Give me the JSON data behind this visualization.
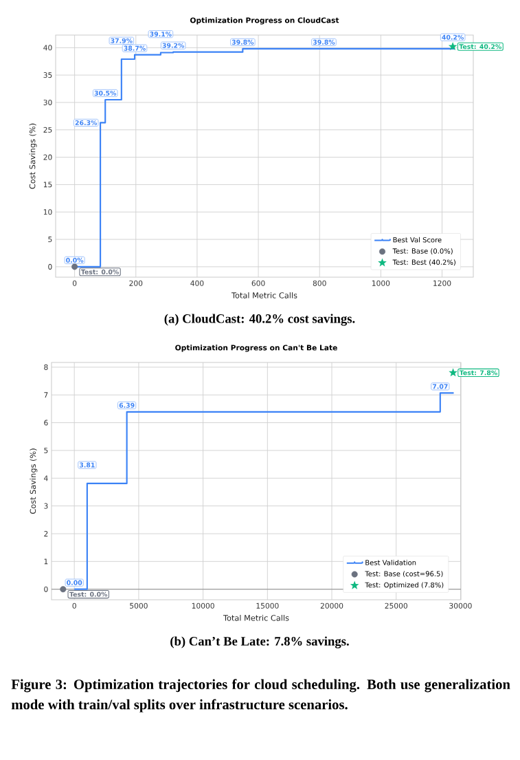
{
  "chart_data": [
    {
      "type": "step",
      "title": "Optimization Progress on CloudCast",
      "xlabel": "Total Metric Calls",
      "ylabel": "Cost Savings (%)",
      "xlim": [
        -62,
        1302
      ],
      "ylim": [
        -1.9,
        42.3
      ],
      "xticks": [
        0,
        200,
        400,
        600,
        800,
        1000,
        1200
      ],
      "yticks": [
        0,
        5,
        10,
        15,
        20,
        25,
        30,
        35,
        40
      ],
      "grid": true,
      "legend": "bottom right",
      "series": [
        {
          "name": "Best Val Score",
          "color": "#3b82f6",
          "x": [
            0,
            84,
            100,
            153,
            196,
            281,
            322,
            549,
            814,
            1241
          ],
          "values": [
            0,
            26.3,
            30.5,
            37.9,
            38.7,
            39.1,
            39.2,
            39.8,
            39.8,
            39.8
          ],
          "value_labels": [
            "0.0%",
            "26.3%",
            "30.5%",
            "37.9%",
            "38.7%",
            "39.1%",
            "39.2%",
            "39.8%",
            "39.8%",
            null
          ]
        },
        {
          "type": "scatter",
          "name": "Test: Base (0.0%)",
          "color": "#6b7280",
          "marker": "circle",
          "x": [
            0
          ],
          "values": [
            0
          ],
          "value_labels": [
            "Test: 0.0%"
          ]
        },
        {
          "type": "scatter",
          "name": "Test: Best (40.2%)",
          "color": "#10b981",
          "marker": "star",
          "x": [
            1235
          ],
          "values": [
            40.2
          ],
          "value_labels": [
            "Test: 40.2%"
          ]
        }
      ],
      "annotations": [
        "(a) CloudCast: 40.2% cost savings.",
        {
          "text": "40.2%",
          "x": 1235,
          "y": 40.2
        }
      ]
    },
    {
      "type": "step",
      "title": "Optimization Progress on Can't Be Late",
      "xlabel": "Total Metric Calls",
      "ylabel": "Cost Savings (%)",
      "xlim": [
        -1772,
        30030
      ],
      "ylim": [
        -0.38,
        8.17
      ],
      "xticks": [
        0,
        5000,
        10000,
        15000,
        20000,
        25000,
        30000
      ],
      "yticks": [
        0,
        1,
        2,
        3,
        4,
        5,
        6,
        7,
        8
      ],
      "grid": true,
      "legend": "bottom right",
      "ref_lines": [
        {
          "axis": "y",
          "value": 0,
          "color": "#8c8c8c"
        }
      ],
      "series": [
        {
          "name": "Best Validation",
          "color": "#3b82f6",
          "x": [
            0,
            995,
            4078,
            28420,
            29470
          ],
          "values": [
            0,
            3.81,
            6.39,
            7.07,
            7.07
          ],
          "value_labels": [
            "0.00",
            "3.81",
            "6.39",
            "7.07",
            null
          ]
        },
        {
          "type": "scatter",
          "name": "Test: Base (cost=96.5)",
          "color": "#6b7280",
          "marker": "circle",
          "x": [
            -874
          ],
          "values": [
            0
          ],
          "value_labels": [
            "Test: 0.0%"
          ]
        },
        {
          "type": "scatter",
          "name": "Test: Optimized (7.8%)",
          "color": "#10b981",
          "marker": "star",
          "x": [
            29420
          ],
          "values": [
            7.8
          ],
          "value_labels": [
            "Test: 7.8%"
          ]
        }
      ],
      "annotations": [
        "(b) Can’t Be Late: 7.8% savings.",
        "Figure 3: Optimization trajectories for cloud scheduling. Both use generalization mode with train/val splits over infrastructure scenarios."
      ]
    }
  ]
}
